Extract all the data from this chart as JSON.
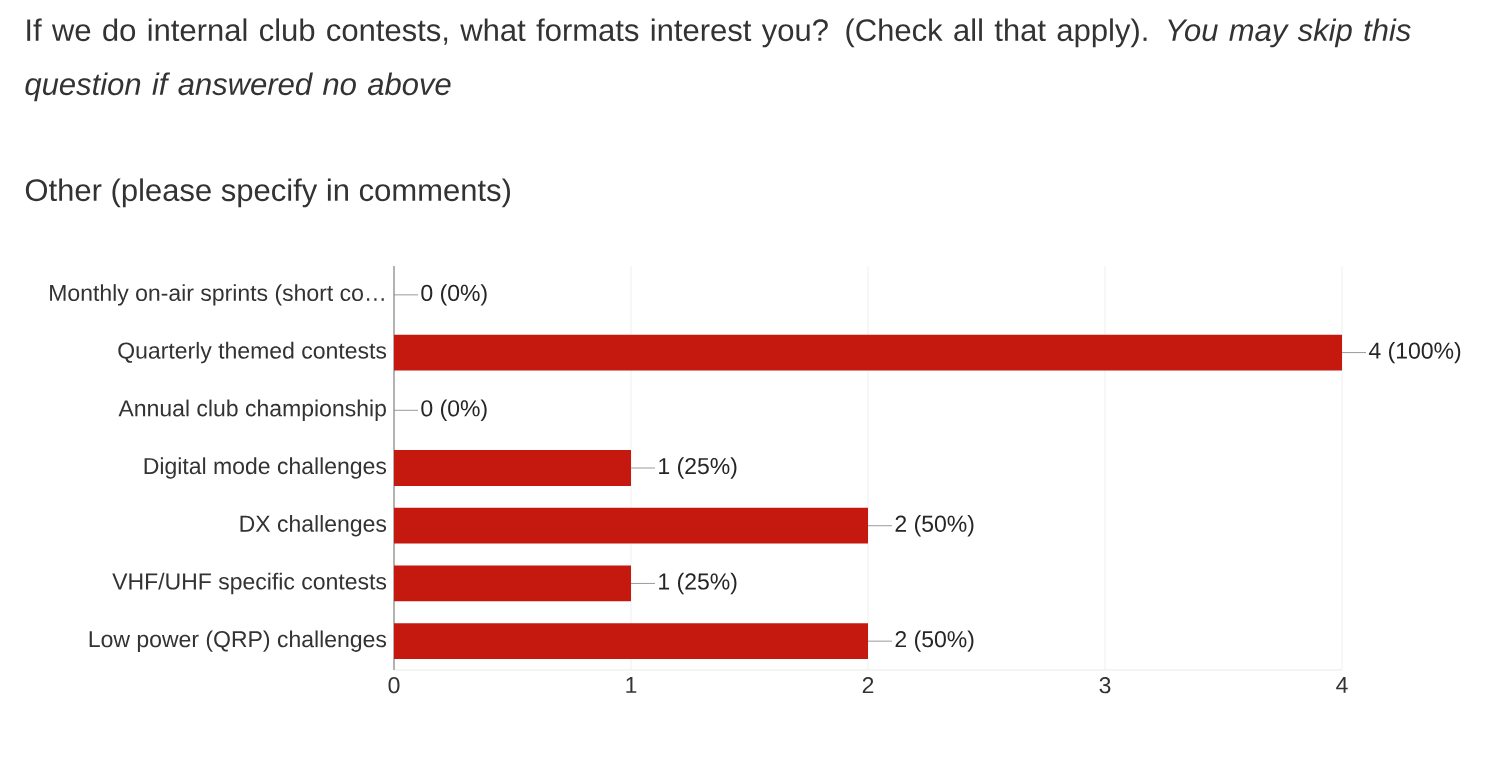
{
  "chart_data": {
    "type": "bar",
    "orientation": "horizontal",
    "title": "If we do internal club contests, what formats interest you? (Check all that apply). *You may skip this question if answered no above*",
    "subtitle": "Other (please specify in comments)",
    "categories": [
      "Monthly on-air sprints (short co…",
      "Quarterly themed contests",
      "Annual club championship",
      "Digital mode challenges",
      "DX challenges",
      "VHF/UHF specific contests",
      "Low power (QRP) challenges"
    ],
    "values": [
      0,
      4,
      0,
      1,
      2,
      1,
      2
    ],
    "value_labels": [
      "0 (0%)",
      "4 (100%)",
      "0 (0%)",
      "1 (25%)",
      "2 (50%)",
      "1 (25%)",
      "2 (50%)"
    ],
    "color": "#c5190f",
    "xlim": [
      0,
      4
    ],
    "xticks": [
      0,
      1,
      2,
      3,
      4
    ],
    "grid": "x"
  }
}
